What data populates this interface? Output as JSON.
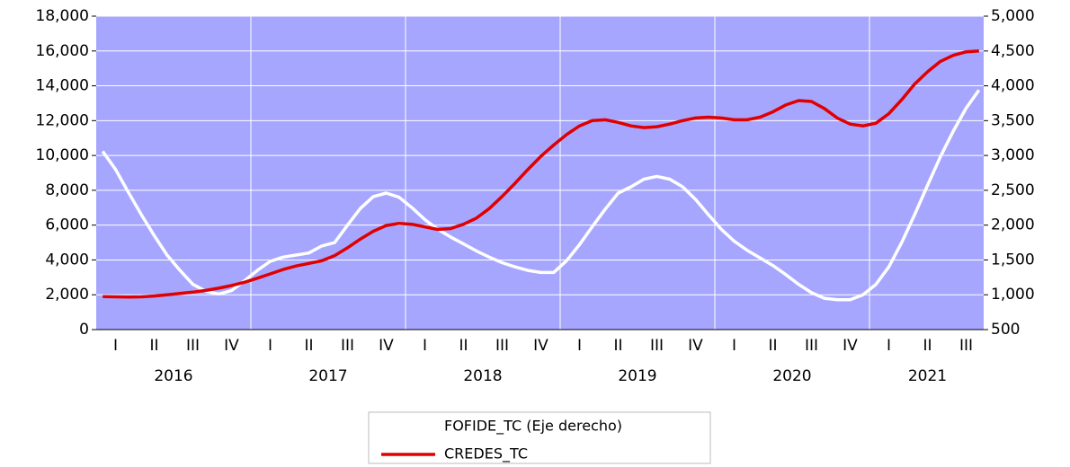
{
  "chart_data": {
    "type": "line",
    "categories": [
      null,
      "I",
      null,
      null,
      "II",
      null,
      null,
      "III",
      null,
      null,
      "IV",
      null,
      null,
      "I",
      null,
      null,
      "II",
      null,
      null,
      "III",
      null,
      null,
      "IV",
      null,
      null,
      "I",
      null,
      null,
      "II",
      null,
      null,
      "III",
      null,
      null,
      "IV",
      null,
      null,
      "I",
      null,
      null,
      "II",
      null,
      null,
      "III",
      null,
      null,
      "IV",
      null,
      null,
      "I",
      null,
      null,
      "II",
      null,
      null,
      "III",
      null,
      null,
      "IV",
      null,
      null,
      "I",
      null,
      null,
      "II",
      null,
      null,
      "III",
      null
    ],
    "year_labels": [
      "2016",
      "2017",
      "2018",
      "2019",
      "2020",
      "2021"
    ],
    "series": [
      {
        "name": "FOFIDE_TC (Eje derecho)",
        "color": "#ffffff",
        "axis": "y2",
        "values": [
          3060,
          2800,
          2470,
          2150,
          1850,
          1570,
          1350,
          1150,
          1050,
          1010,
          1060,
          1200,
          1350,
          1480,
          1540,
          1570,
          1600,
          1700,
          1750,
          2000,
          2240,
          2410,
          2460,
          2400,
          2250,
          2080,
          1940,
          1830,
          1730,
          1630,
          1540,
          1460,
          1400,
          1350,
          1320,
          1320,
          1490,
          1720,
          1980,
          2230,
          2460,
          2550,
          2660,
          2700,
          2660,
          2550,
          2370,
          2150,
          1940,
          1770,
          1640,
          1530,
          1420,
          1290,
          1150,
          1030,
          950,
          930,
          930,
          1000,
          1150,
          1400,
          1750,
          2150,
          2570,
          2980,
          3350,
          3680,
          3940
        ]
      },
      {
        "name": "CREDES_TC",
        "color": "#e00000",
        "values": [
          1900,
          1880,
          1870,
          1880,
          1930,
          2000,
          2080,
          2150,
          2250,
          2380,
          2530,
          2720,
          2950,
          3200,
          3450,
          3650,
          3800,
          3950,
          4250,
          4700,
          5200,
          5650,
          5980,
          6100,
          6050,
          5900,
          5750,
          5800,
          6050,
          6400,
          6950,
          7650,
          8400,
          9200,
          9950,
          10600,
          11200,
          11700,
          12000,
          12050,
          11900,
          11700,
          11600,
          11650,
          11800,
          12000,
          12150,
          12200,
          12150,
          12050,
          12050,
          12200,
          12500,
          12900,
          13150,
          13100,
          12700,
          12150,
          11800,
          11700,
          11850,
          12400,
          13200,
          14100,
          14800,
          15400,
          15750,
          15950,
          16000
        ]
      }
    ],
    "ylim": [
      0,
      18000
    ],
    "yticks": [
      0,
      {
        "value": 2000,
        "label": "2,000"
      },
      {
        "value": 4000,
        "label": "4,000"
      },
      {
        "value": 6000,
        "label": "6,000"
      },
      {
        "value": 8000,
        "label": "8,000"
      },
      {
        "value": 10000,
        "label": "10,000"
      },
      {
        "value": 12000,
        "label": "12,000"
      },
      {
        "value": 14000,
        "label": "14,000"
      },
      {
        "value": 16000,
        "label": "16,000"
      },
      {
        "value": 18000,
        "label": "18,000"
      }
    ],
    "y2lim": [
      500,
      5000
    ],
    "y2ticks": [
      500,
      {
        "value": 1000,
        "label": "1,000"
      },
      {
        "value": 1500,
        "label": "1,500"
      },
      {
        "value": 2000,
        "label": "2,000"
      },
      {
        "value": 2500,
        "label": "2,500"
      },
      {
        "value": 3000,
        "label": "3,000"
      },
      {
        "value": 3500,
        "label": "3,500"
      },
      {
        "value": 4000,
        "label": "4,000"
      },
      {
        "value": 4500,
        "label": "4,500"
      },
      {
        "value": 5000,
        "label": "5,000"
      }
    ],
    "grid": true,
    "plot_background": "#a6a6ff",
    "legend": "bottom"
  }
}
